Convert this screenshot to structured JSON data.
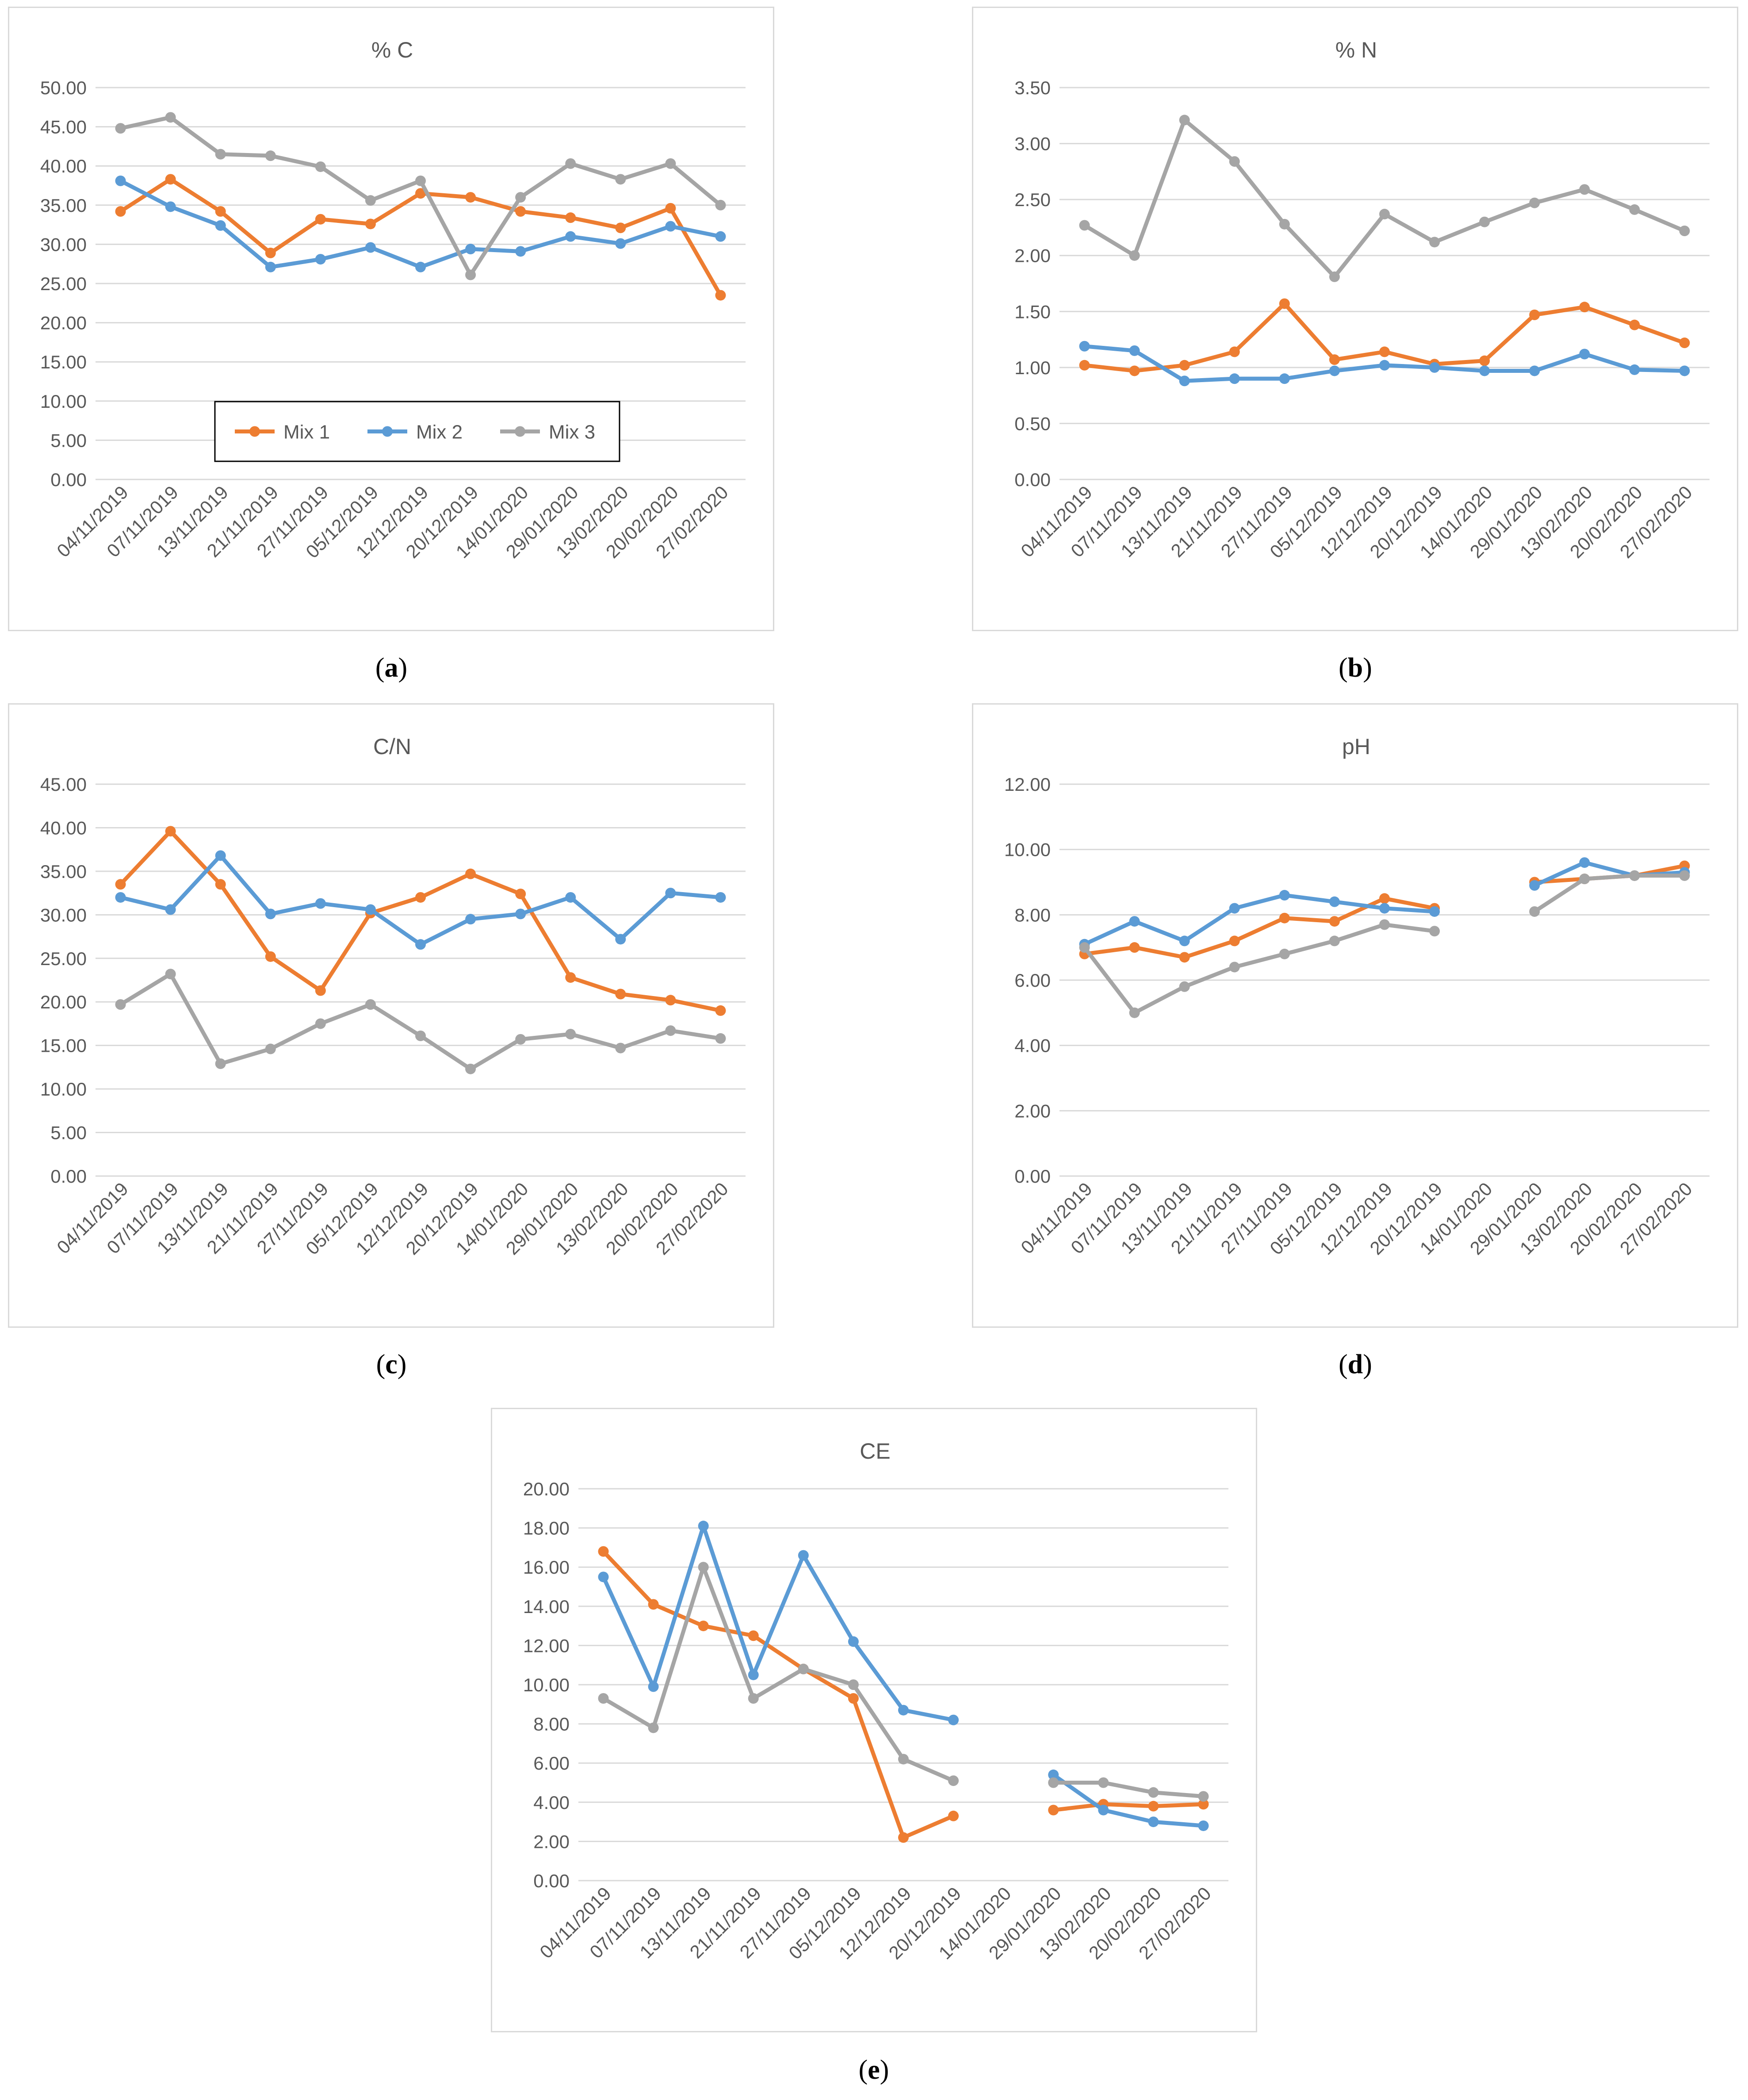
{
  "colors": {
    "Mix 1": "#ED7D31",
    "Mix 2": "#5B9BD5",
    "Mix 3": "#A5A5A5"
  },
  "legend": [
    "Mix 1",
    "Mix 2",
    "Mix 3"
  ],
  "captions": [
    "a",
    "b",
    "c",
    "d",
    "e"
  ],
  "chart_data": [
    {
      "type": "line",
      "title": "% C",
      "xlabel": "",
      "ylabel": "",
      "categories": [
        "04/11/2019",
        "07/11/2019",
        "13/11/2019",
        "21/11/2019",
        "27/11/2019",
        "05/12/2019",
        "12/12/2019",
        "20/12/2019",
        "14/01/2020",
        "29/01/2020",
        "13/02/2020",
        "20/02/2020",
        "27/02/2020"
      ],
      "ylim": [
        0,
        50
      ],
      "ytick_step": 5,
      "grid": true,
      "legend": "inside-bottom-left",
      "series": [
        {
          "name": "Mix 1",
          "values": [
            34.2,
            38.3,
            34.2,
            28.9,
            33.2,
            32.6,
            36.5,
            36.0,
            34.2,
            33.4,
            32.1,
            34.6,
            23.5
          ]
        },
        {
          "name": "Mix 2",
          "values": [
            38.1,
            34.8,
            32.4,
            27.1,
            28.1,
            29.6,
            27.1,
            29.4,
            29.1,
            31.0,
            30.1,
            32.3,
            31.0
          ]
        },
        {
          "name": "Mix 3",
          "values": [
            44.8,
            46.2,
            41.5,
            41.3,
            39.9,
            35.6,
            38.1,
            26.1,
            36.0,
            40.3,
            38.3,
            40.3,
            35.0
          ]
        }
      ]
    },
    {
      "type": "line",
      "title": "% N",
      "xlabel": "",
      "ylabel": "",
      "categories": [
        "04/11/2019",
        "07/11/2019",
        "13/11/2019",
        "21/11/2019",
        "27/11/2019",
        "05/12/2019",
        "12/12/2019",
        "20/12/2019",
        "14/01/2020",
        "29/01/2020",
        "13/02/2020",
        "20/02/2020",
        "27/02/2020"
      ],
      "ylim": [
        0,
        3.5
      ],
      "ytick_step": 0.5,
      "grid": true,
      "series": [
        {
          "name": "Mix 1",
          "values": [
            1.02,
            0.97,
            1.02,
            1.14,
            1.57,
            1.07,
            1.14,
            1.03,
            1.06,
            1.47,
            1.54,
            1.38,
            1.22
          ]
        },
        {
          "name": "Mix 2",
          "values": [
            1.19,
            1.15,
            0.88,
            0.9,
            0.9,
            0.97,
            1.02,
            1.0,
            0.97,
            0.97,
            1.12,
            0.98,
            0.97
          ]
        },
        {
          "name": "Mix 3",
          "values": [
            2.27,
            2.0,
            3.21,
            2.84,
            2.28,
            1.81,
            2.37,
            2.12,
            2.3,
            2.47,
            2.59,
            2.41,
            2.22
          ]
        }
      ]
    },
    {
      "type": "line",
      "title": "C/N",
      "xlabel": "",
      "ylabel": "",
      "categories": [
        "04/11/2019",
        "07/11/2019",
        "13/11/2019",
        "21/11/2019",
        "27/11/2019",
        "05/12/2019",
        "12/12/2019",
        "20/12/2019",
        "14/01/2020",
        "29/01/2020",
        "13/02/2020",
        "20/02/2020",
        "27/02/2020"
      ],
      "ylim": [
        0,
        45
      ],
      "ytick_step": 5,
      "grid": true,
      "series": [
        {
          "name": "Mix 1",
          "values": [
            33.5,
            39.6,
            33.5,
            25.2,
            21.3,
            30.2,
            32.0,
            34.7,
            32.4,
            22.8,
            20.9,
            20.2,
            19.0
          ]
        },
        {
          "name": "Mix 2",
          "values": [
            32.0,
            30.6,
            36.8,
            30.1,
            31.3,
            30.6,
            26.6,
            29.5,
            30.1,
            32.0,
            27.2,
            32.5,
            32.0
          ]
        },
        {
          "name": "Mix 3",
          "values": [
            19.7,
            23.2,
            12.9,
            14.6,
            17.5,
            19.7,
            16.1,
            12.3,
            15.7,
            16.3,
            14.7,
            16.7,
            15.8
          ]
        }
      ]
    },
    {
      "type": "line",
      "title": "pH",
      "xlabel": "",
      "ylabel": "",
      "categories": [
        "04/11/2019",
        "07/11/2019",
        "13/11/2019",
        "21/11/2019",
        "27/11/2019",
        "05/12/2019",
        "12/12/2019",
        "20/12/2019",
        "14/01/2020",
        "29/01/2020",
        "13/02/2020",
        "20/02/2020",
        "27/02/2020"
      ],
      "ylim": [
        0,
        12
      ],
      "ytick_step": 2,
      "grid": true,
      "series": [
        {
          "name": "Mix 1",
          "values": [
            6.8,
            7.0,
            6.7,
            7.2,
            7.9,
            7.8,
            8.5,
            8.2,
            null,
            9.0,
            9.1,
            9.2,
            9.5
          ]
        },
        {
          "name": "Mix 2",
          "values": [
            7.1,
            7.8,
            7.2,
            8.2,
            8.6,
            8.4,
            8.2,
            8.1,
            null,
            8.9,
            9.6,
            9.2,
            9.3
          ]
        },
        {
          "name": "Mix 3",
          "values": [
            7.0,
            5.0,
            5.8,
            6.4,
            6.8,
            7.2,
            7.7,
            7.5,
            null,
            8.1,
            9.1,
            9.2,
            9.2
          ]
        }
      ]
    },
    {
      "type": "line",
      "title": "CE",
      "xlabel": "",
      "ylabel": "",
      "categories": [
        "04/11/2019",
        "07/11/2019",
        "13/11/2019",
        "21/11/2019",
        "27/11/2019",
        "05/12/2019",
        "12/12/2019",
        "20/12/2019",
        "14/01/2020",
        "29/01/2020",
        "13/02/2020",
        "20/02/2020",
        "27/02/2020"
      ],
      "ylim": [
        0,
        20
      ],
      "ytick_step": 2,
      "grid": true,
      "series": [
        {
          "name": "Mix 1",
          "values": [
            16.8,
            14.1,
            13.0,
            12.5,
            10.8,
            9.3,
            2.2,
            3.3,
            null,
            3.6,
            3.9,
            3.8,
            3.9
          ]
        },
        {
          "name": "Mix 2",
          "values": [
            15.5,
            9.9,
            18.1,
            10.5,
            16.6,
            12.2,
            8.7,
            8.2,
            null,
            5.4,
            3.6,
            3.0,
            2.8
          ]
        },
        {
          "name": "Mix 3",
          "values": [
            9.3,
            7.8,
            16.0,
            9.3,
            10.8,
            10.0,
            6.2,
            5.1,
            null,
            5.0,
            5.0,
            4.5,
            4.3
          ]
        }
      ]
    }
  ]
}
